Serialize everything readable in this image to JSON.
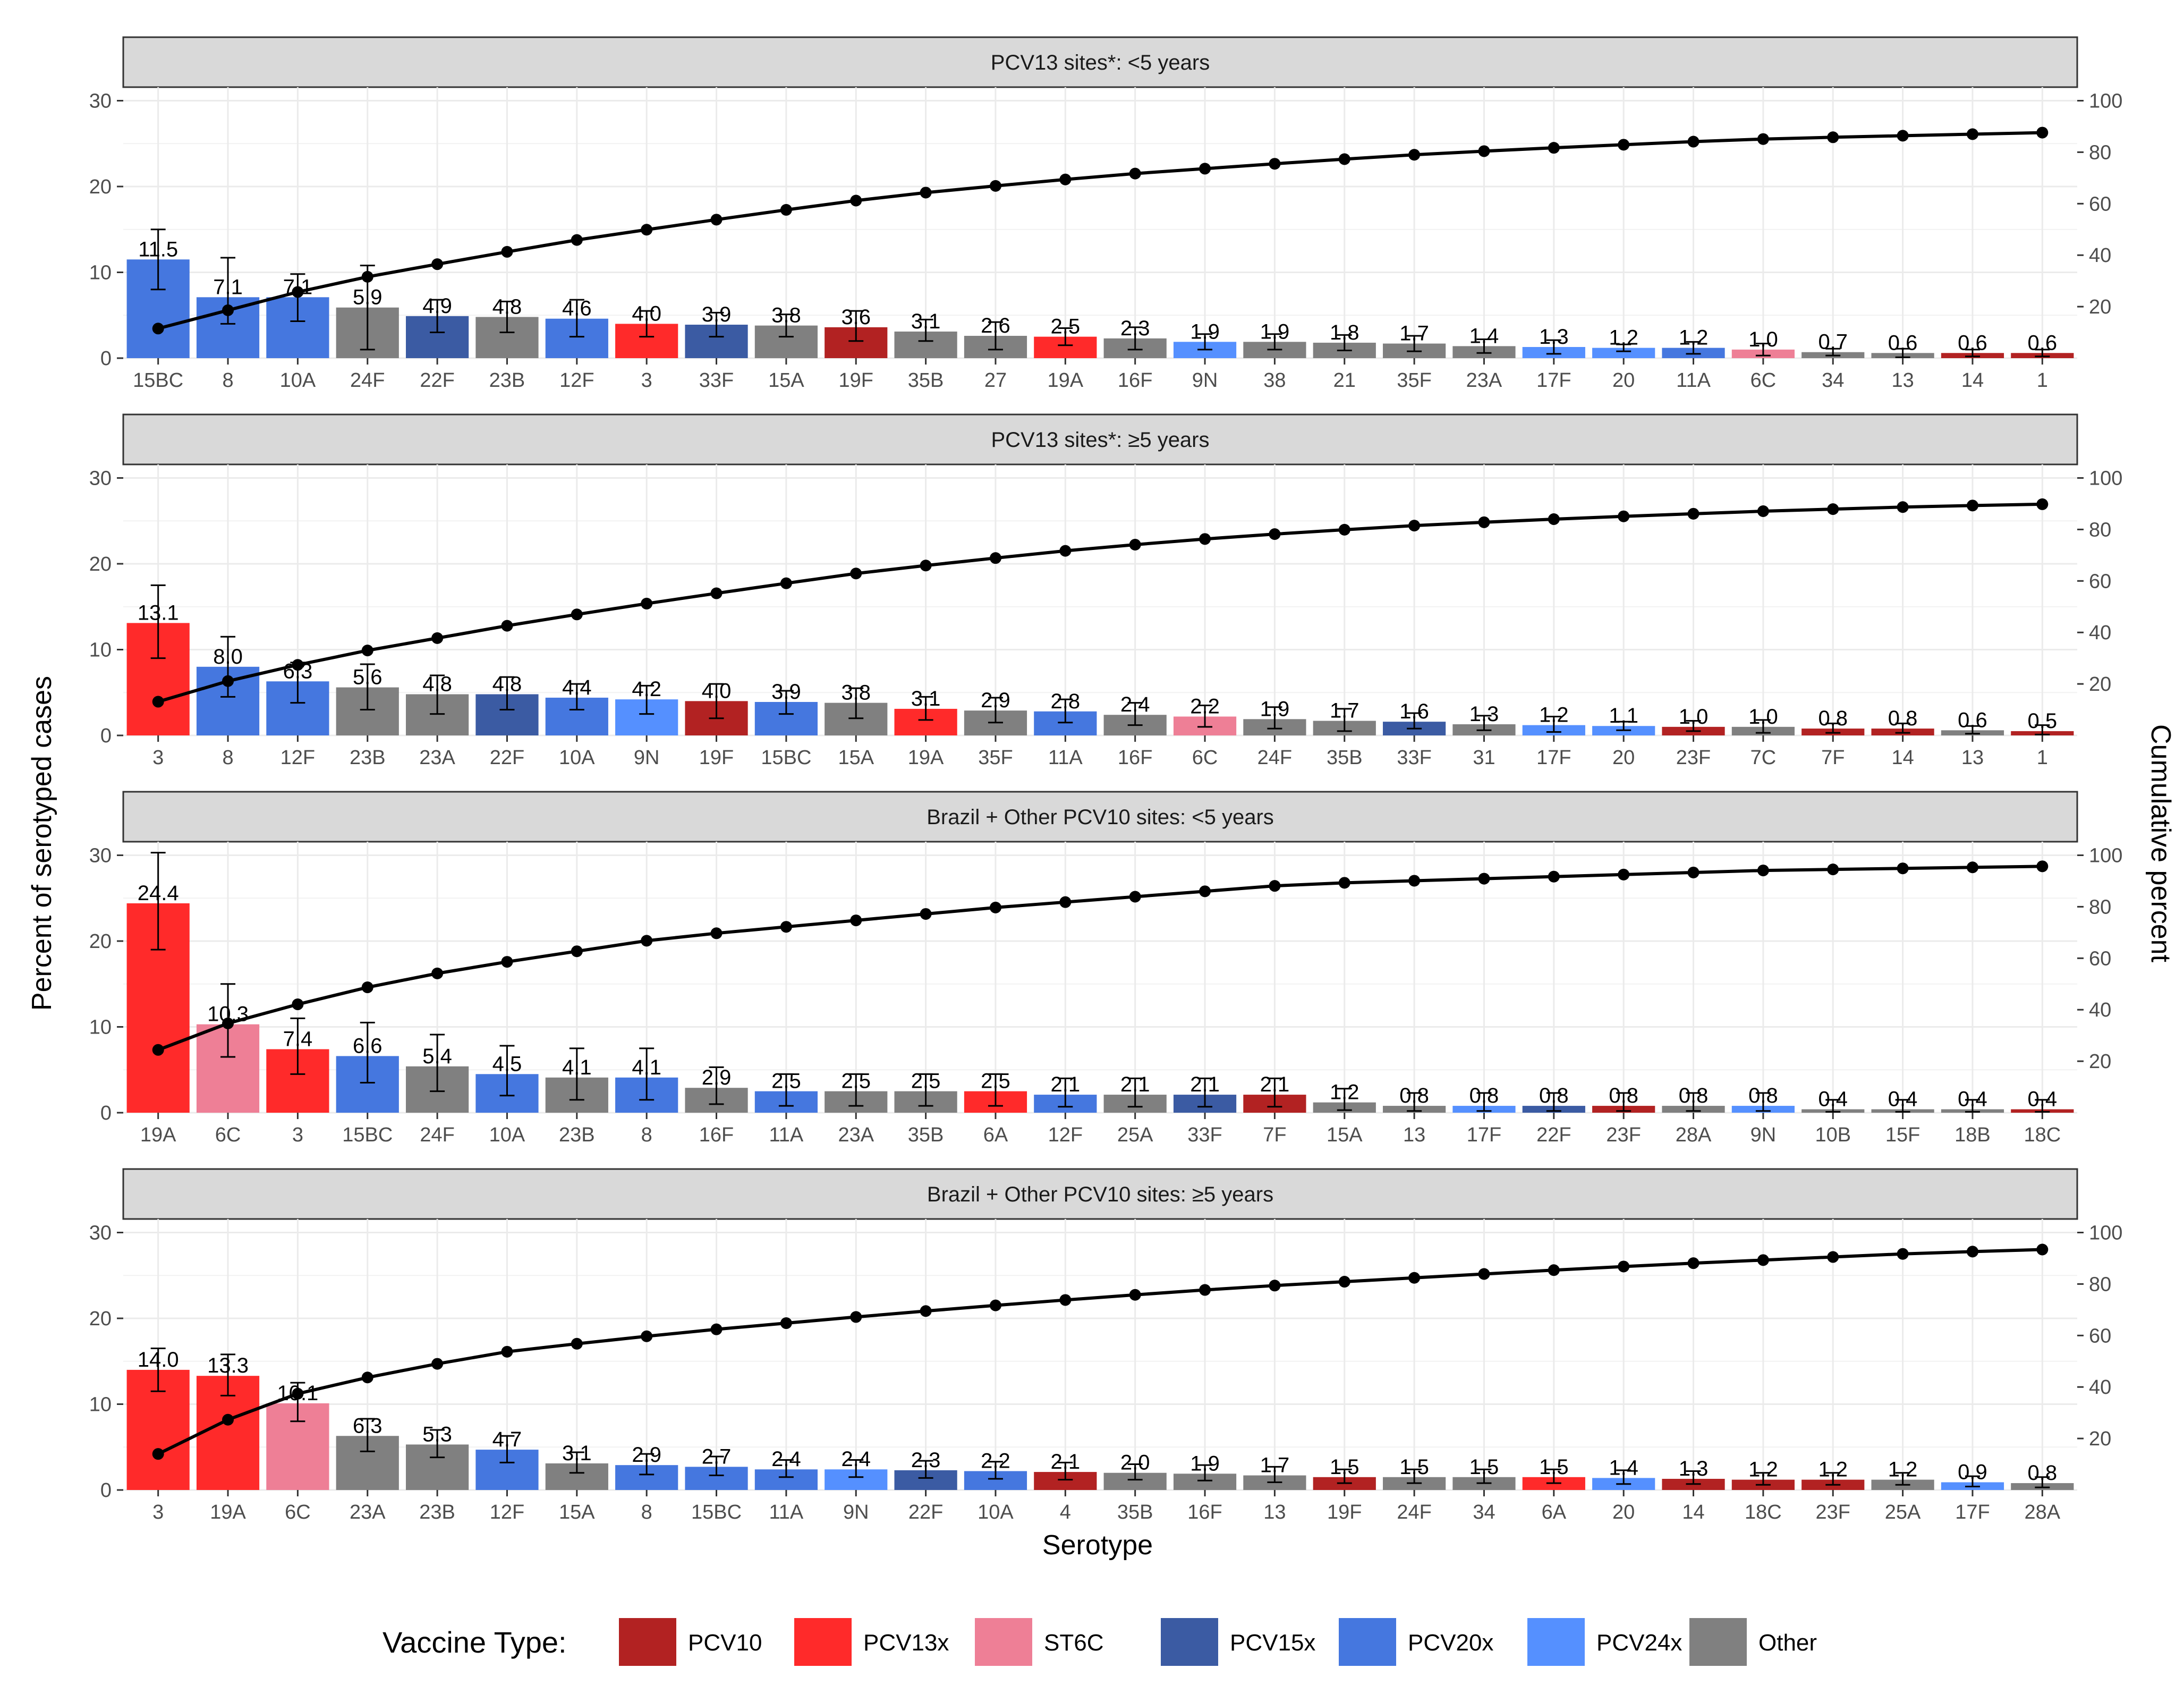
{
  "chart_data": [
    {
      "type": "bar",
      "title": "PCV13 sites*: <5 years",
      "categories": [
        "15BC",
        "8",
        "10A",
        "24F",
        "22F",
        "23B",
        "12F",
        "3",
        "33F",
        "15A",
        "19F",
        "35B",
        "27",
        "19A",
        "16F",
        "9N",
        "38",
        "21",
        "35F",
        "23A",
        "17F",
        "20",
        "11A",
        "6C",
        "34",
        "13",
        "14",
        "1"
      ],
      "values": [
        11.5,
        7.1,
        7.1,
        5.9,
        4.9,
        4.8,
        4.6,
        4.0,
        3.9,
        3.8,
        3.6,
        3.1,
        2.6,
        2.5,
        2.3,
        1.9,
        1.9,
        1.8,
        1.7,
        1.4,
        1.3,
        1.2,
        1.2,
        1.0,
        0.7,
        0.6,
        0.6,
        0.6
      ],
      "labels": [
        "11.5",
        "7.1",
        "7.1",
        "5.9",
        "4.9",
        "4.8",
        "4.6",
        "4.0",
        "3.9",
        "3.8",
        "3.6",
        "3.1",
        "2.6",
        "2.5",
        "2.3",
        "1.9",
        "1.9",
        "1.8",
        "1.7",
        "1.4",
        "1.3",
        "1.2",
        "1.2",
        "1.0",
        "0.7",
        "0.6",
        "0.6",
        "0.6"
      ],
      "vaccine_type": [
        "PCV20x",
        "PCV20x",
        "PCV20x",
        "Other",
        "PCV15x",
        "Other",
        "PCV20x",
        "PCV13x",
        "PCV15x",
        "Other",
        "PCV10",
        "Other",
        "Other",
        "PCV13x",
        "Other",
        "PCV24x",
        "Other",
        "Other",
        "Other",
        "Other",
        "PCV24x",
        "PCV24x",
        "PCV20x",
        "ST6C",
        "Other",
        "Other",
        "PCV10",
        "PCV10"
      ],
      "ci_low": [
        8.0,
        4.0,
        4.3,
        1.0,
        3.0,
        3.0,
        2.5,
        2.5,
        2.5,
        2.5,
        2.0,
        2.0,
        1.0,
        1.5,
        1.0,
        1.0,
        1.0,
        0.9,
        0.8,
        0.6,
        0.5,
        0.8,
        0.5,
        0.3,
        0.3,
        0.1,
        0.2,
        0.2
      ],
      "ci_high": [
        15.0,
        11.7,
        9.8,
        10.8,
        6.8,
        6.6,
        6.8,
        5.5,
        5.3,
        5.1,
        5.5,
        4.5,
        4.2,
        3.5,
        3.6,
        2.8,
        2.8,
        2.7,
        2.6,
        2.2,
        2.1,
        1.6,
        1.9,
        1.7,
        1.1,
        1.1,
        1.0,
        1.0
      ],
      "cumulative": [
        11.5,
        18.6,
        25.7,
        31.6,
        36.5,
        41.3,
        45.9,
        49.9,
        53.8,
        57.6,
        61.2,
        64.3,
        66.9,
        69.4,
        71.7,
        73.6,
        75.5,
        77.3,
        79.0,
        80.4,
        81.7,
        82.9,
        84.1,
        85.1,
        85.8,
        86.4,
        87.0,
        87.6
      ],
      "ylim": [
        0,
        30
      ],
      "y2lim": [
        0,
        100
      ]
    },
    {
      "type": "bar",
      "title": "PCV13 sites*: ≥5 years",
      "categories": [
        "3",
        "8",
        "12F",
        "23B",
        "23A",
        "22F",
        "10A",
        "9N",
        "19F",
        "15BC",
        "15A",
        "19A",
        "35F",
        "11A",
        "16F",
        "6C",
        "24F",
        "35B",
        "33F",
        "31",
        "17F",
        "20",
        "23F",
        "7C",
        "7F",
        "14",
        "13",
        "1"
      ],
      "values": [
        13.1,
        8.0,
        6.3,
        5.6,
        4.8,
        4.8,
        4.4,
        4.2,
        4.0,
        3.9,
        3.8,
        3.1,
        2.9,
        2.8,
        2.4,
        2.2,
        1.9,
        1.7,
        1.6,
        1.3,
        1.2,
        1.1,
        1.0,
        1.0,
        0.8,
        0.8,
        0.6,
        0.5
      ],
      "labels": [
        "13.1",
        "8.0",
        "6.3",
        "5.6",
        "4.8",
        "4.8",
        "4.4",
        "4.2",
        "4.0",
        "3.9",
        "3.8",
        "3.1",
        "2.9",
        "2.8",
        "2.4",
        "2.2",
        "1.9",
        "1.7",
        "1.6",
        "1.3",
        "1.2",
        "1.1",
        "1.0",
        "1.0",
        "0.8",
        "0.8",
        "0.6",
        "0.5"
      ],
      "vaccine_type": [
        "PCV13x",
        "PCV20x",
        "PCV20x",
        "Other",
        "Other",
        "PCV15x",
        "PCV20x",
        "PCV24x",
        "PCV10",
        "PCV20x",
        "Other",
        "PCV13x",
        "Other",
        "PCV20x",
        "Other",
        "ST6C",
        "Other",
        "Other",
        "PCV15x",
        "Other",
        "PCV24x",
        "PCV24x",
        "PCV10",
        "Other",
        "PCV10",
        "PCV10",
        "Other",
        "PCV10"
      ],
      "ci_low": [
        9.0,
        4.5,
        3.8,
        3.0,
        2.5,
        3.0,
        3.0,
        2.5,
        2.0,
        2.5,
        2.0,
        1.8,
        1.5,
        1.5,
        1.2,
        1.0,
        0.8,
        0.5,
        0.8,
        0.6,
        0.4,
        0.6,
        0.5,
        0.3,
        0.3,
        0.3,
        0.2,
        0.1
      ],
      "ci_high": [
        17.5,
        11.5,
        8.5,
        8.3,
        7.0,
        6.8,
        6.0,
        5.8,
        6.0,
        5.2,
        5.5,
        4.5,
        4.4,
        4.2,
        3.8,
        3.5,
        3.3,
        3.1,
        2.6,
        2.3,
        2.2,
        1.6,
        1.7,
        1.8,
        1.4,
        1.4,
        1.1,
        1.2
      ],
      "cumulative": [
        13.1,
        21.1,
        27.4,
        33.0,
        37.8,
        42.6,
        47.0,
        51.2,
        55.2,
        59.1,
        62.9,
        66.0,
        68.9,
        71.7,
        74.1,
        76.3,
        78.2,
        79.9,
        81.5,
        82.8,
        84.0,
        85.1,
        86.1,
        87.1,
        87.9,
        88.7,
        89.3,
        89.8
      ],
      "ylim": [
        0,
        30
      ],
      "y2lim": [
        0,
        100
      ]
    },
    {
      "type": "bar",
      "title": "Brazil + Other PCV10 sites: <5 years",
      "categories": [
        "19A",
        "6C",
        "3",
        "15BC",
        "24F",
        "10A",
        "23B",
        "8",
        "16F",
        "11A",
        "23A",
        "35B",
        "6A",
        "12F",
        "25A",
        "33F",
        "7F",
        "15A",
        "13",
        "17F",
        "22F",
        "23F",
        "28A",
        "9N",
        "10B",
        "15F",
        "18B",
        "18C"
      ],
      "values": [
        24.4,
        10.3,
        7.4,
        6.6,
        5.4,
        4.5,
        4.1,
        4.1,
        2.9,
        2.5,
        2.5,
        2.5,
        2.5,
        2.1,
        2.1,
        2.1,
        2.1,
        1.2,
        0.8,
        0.8,
        0.8,
        0.8,
        0.8,
        0.8,
        0.4,
        0.4,
        0.4,
        0.4
      ],
      "labels": [
        "24.4",
        "10.3",
        "7.4",
        "6.6",
        "5.4",
        "4.5",
        "4.1",
        "4.1",
        "2.9",
        "2.5",
        "2.5",
        "2.5",
        "2.5",
        "2.1",
        "2.1",
        "2.1",
        "2.1",
        "1.2",
        "0.8",
        "0.8",
        "0.8",
        "0.8",
        "0.8",
        "0.8",
        "0.4",
        "0.4",
        "0.4",
        "0.4"
      ],
      "vaccine_type": [
        "PCV13x",
        "ST6C",
        "PCV13x",
        "PCV20x",
        "Other",
        "PCV20x",
        "Other",
        "PCV20x",
        "Other",
        "PCV20x",
        "Other",
        "Other",
        "PCV13x",
        "PCV20x",
        "Other",
        "PCV15x",
        "PCV10",
        "Other",
        "Other",
        "PCV24x",
        "PCV15x",
        "PCV10",
        "Other",
        "PCV24x",
        "Other",
        "Other",
        "Other",
        "PCV10"
      ],
      "ci_low": [
        19.0,
        6.5,
        4.5,
        3.5,
        2.5,
        2.0,
        1.5,
        1.5,
        1.0,
        0.8,
        0.8,
        0.8,
        0.8,
        0.7,
        0.7,
        0.7,
        0.7,
        0.3,
        0.2,
        0.2,
        0.2,
        0.2,
        0.2,
        0.2,
        0.1,
        0.1,
        0.1,
        0.1
      ],
      "ci_high": [
        30.3,
        15.0,
        11.0,
        10.5,
        9.1,
        7.8,
        7.5,
        7.5,
        5.3,
        4.5,
        4.5,
        4.5,
        4.5,
        4.0,
        4.0,
        4.0,
        4.0,
        2.8,
        2.3,
        2.3,
        2.3,
        2.3,
        2.3,
        2.3,
        1.5,
        1.5,
        1.5,
        1.5
      ],
      "cumulative": [
        24.4,
        34.7,
        42.1,
        48.7,
        54.1,
        58.6,
        62.7,
        66.8,
        69.7,
        72.2,
        74.7,
        77.2,
        79.7,
        81.8,
        83.9,
        86.0,
        88.1,
        89.3,
        90.1,
        90.9,
        91.7,
        92.5,
        93.3,
        94.1,
        94.5,
        94.9,
        95.3,
        95.7
      ],
      "ylim": [
        0,
        30
      ],
      "y2lim": [
        0,
        100
      ]
    },
    {
      "type": "bar",
      "title": "Brazil + Other PCV10 sites: ≥5 years",
      "categories": [
        "3",
        "19A",
        "6C",
        "23A",
        "23B",
        "12F",
        "15A",
        "8",
        "15BC",
        "11A",
        "9N",
        "22F",
        "10A",
        "4",
        "35B",
        "16F",
        "13",
        "19F",
        "24F",
        "34",
        "6A",
        "20",
        "14",
        "18C",
        "23F",
        "25A",
        "17F",
        "28A"
      ],
      "values": [
        14.0,
        13.3,
        10.1,
        6.3,
        5.3,
        4.7,
        3.1,
        2.9,
        2.7,
        2.4,
        2.4,
        2.3,
        2.2,
        2.1,
        2.0,
        1.9,
        1.7,
        1.5,
        1.5,
        1.5,
        1.5,
        1.4,
        1.3,
        1.2,
        1.2,
        1.2,
        0.9,
        0.8
      ],
      "labels": [
        "14.0",
        "13.3",
        "10.1",
        "6.3",
        "5.3",
        "4.7",
        "3.1",
        "2.9",
        "2.7",
        "2.4",
        "2.4",
        "2.3",
        "2.2",
        "2.1",
        "2.0",
        "1.9",
        "1.7",
        "1.5",
        "1.5",
        "1.5",
        "1.5",
        "1.4",
        "1.3",
        "1.2",
        "1.2",
        "1.2",
        "0.9",
        "0.8"
      ],
      "vaccine_type": [
        "PCV13x",
        "PCV13x",
        "ST6C",
        "Other",
        "Other",
        "PCV20x",
        "Other",
        "PCV20x",
        "PCV20x",
        "PCV20x",
        "PCV24x",
        "PCV15x",
        "PCV20x",
        "PCV10",
        "Other",
        "Other",
        "Other",
        "PCV10",
        "Other",
        "Other",
        "PCV13x",
        "PCV24x",
        "PCV10",
        "PCV10",
        "PCV10",
        "Other",
        "PCV24x",
        "Other"
      ],
      "ci_low": [
        11.5,
        11.0,
        8.0,
        4.5,
        3.8,
        3.2,
        2.0,
        1.8,
        1.7,
        1.5,
        1.5,
        1.4,
        1.3,
        1.2,
        1.2,
        1.1,
        0.9,
        0.8,
        0.8,
        0.8,
        0.8,
        0.7,
        0.7,
        0.6,
        0.6,
        0.6,
        0.4,
        0.3
      ],
      "ci_high": [
        16.5,
        15.8,
        12.5,
        8.3,
        7.0,
        6.3,
        4.4,
        4.2,
        3.9,
        3.5,
        3.5,
        3.4,
        3.3,
        3.2,
        3.0,
        2.9,
        2.7,
        2.4,
        2.4,
        2.4,
        2.4,
        2.3,
        2.2,
        2.0,
        2.0,
        2.0,
        1.6,
        1.5
      ],
      "cumulative": [
        14.0,
        27.3,
        37.4,
        43.7,
        49.0,
        53.7,
        56.8,
        59.7,
        62.4,
        64.8,
        67.2,
        69.5,
        71.7,
        73.8,
        75.8,
        77.7,
        79.4,
        80.9,
        82.4,
        83.9,
        85.4,
        86.8,
        88.1,
        89.3,
        90.5,
        91.7,
        92.6,
        93.4
      ],
      "ylim": [
        0,
        30
      ],
      "y2lim": [
        0,
        100
      ]
    }
  ],
  "axes": {
    "ylabel": "Percent of serotyped cases",
    "y2label": "Cumulative percent",
    "xlabel": "Serotype",
    "y_ticks": [
      "0",
      "10",
      "20",
      "30"
    ],
    "y2_ticks": [
      "20",
      "40",
      "60",
      "80",
      "100"
    ]
  },
  "legend": {
    "title": "Vaccine Type:",
    "items": [
      {
        "label": "PCV10",
        "color": "#B22222"
      },
      {
        "label": "PCV13x",
        "color": "#FF2A2A"
      },
      {
        "label": "ST6C",
        "color": "#EE7F96"
      },
      {
        "label": "PCV15x",
        "color": "#3B5BA3"
      },
      {
        "label": "PCV20x",
        "color": "#4577DF"
      },
      {
        "label": "PCV24x",
        "color": "#5590FF"
      },
      {
        "label": "Other",
        "color": "#808080"
      }
    ]
  }
}
